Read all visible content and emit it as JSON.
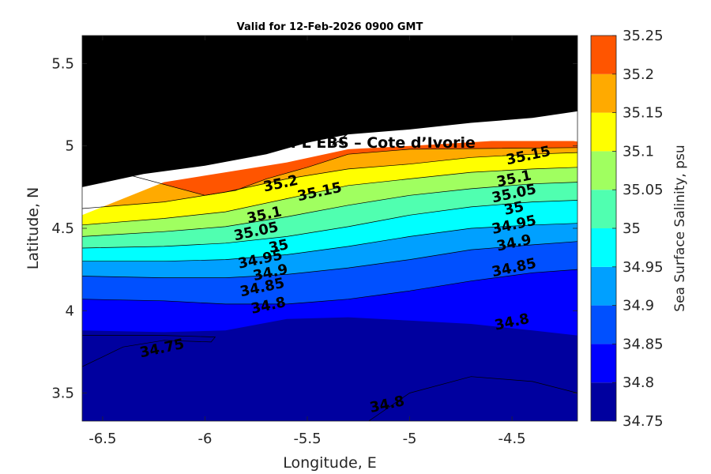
{
  "chart_data": {
    "type": "heatmap",
    "subtype": "filled contour map",
    "title": "Valid for 12-Feb-2026 0900 GMT",
    "xlabel": "Longitude, E",
    "ylabel": "Latitude, N",
    "xlim": [
      -6.6,
      -4.18
    ],
    "ylim": [
      3.33,
      5.67
    ],
    "xticks": [
      -6.5,
      -6,
      -5.5,
      -5,
      -4.5
    ],
    "xtick_labels": [
      "-6.5",
      "-6",
      "-5.5",
      "-5",
      "-4.5"
    ],
    "yticks": [
      3.5,
      4,
      4.5,
      5,
      5.5
    ],
    "ytick_labels": [
      "3.5",
      "4",
      "4.5",
      "5",
      "5.5"
    ],
    "colorbar": {
      "label": "Sea Surface Salinity, psu",
      "levels": [
        34.75,
        34.8,
        34.85,
        34.9,
        34.95,
        35,
        35.05,
        35.1,
        35.15,
        35.2,
        35.25
      ],
      "tick_labels": [
        "34.75",
        "34.8",
        "34.85",
        "34.9",
        "34.95",
        "35",
        "35.05",
        "35.1",
        "35.15",
        "35.2",
        "35.25"
      ],
      "colors": [
        "#00009f",
        "#0000ff",
        "#0050ff",
        "#00a0ff",
        "#00ffff",
        "#50ffb0",
        "#a0ff60",
        "#ffff00",
        "#ffaa00",
        "#ff5500"
      ]
    },
    "land_color": "#000000",
    "coastline": [
      [
        -6.6,
        4.75
      ],
      [
        -6.3,
        4.83
      ],
      [
        -6.0,
        4.88
      ],
      [
        -5.7,
        4.95
      ],
      [
        -5.5,
        5.02
      ],
      [
        -5.3,
        5.07
      ],
      [
        -5.0,
        5.1
      ],
      [
        -4.7,
        5.14
      ],
      [
        -4.4,
        5.17
      ],
      [
        -4.18,
        5.21
      ]
    ],
    "contour_boundaries": [
      {
        "level": 34.8,
        "points": [
          [
            -6.6,
            3.88
          ],
          [
            -6.2,
            3.87
          ],
          [
            -5.9,
            3.88
          ],
          [
            -5.6,
            3.95
          ],
          [
            -5.3,
            3.96
          ],
          [
            -5.0,
            3.94
          ],
          [
            -4.7,
            3.92
          ],
          [
            -4.4,
            3.88
          ],
          [
            -4.18,
            3.85
          ]
        ]
      },
      {
        "level": 34.85,
        "points": [
          [
            -6.6,
            4.07
          ],
          [
            -6.2,
            4.06
          ],
          [
            -5.9,
            4.04
          ],
          [
            -5.6,
            4.04
          ],
          [
            -5.3,
            4.07
          ],
          [
            -5.0,
            4.12
          ],
          [
            -4.7,
            4.18
          ],
          [
            -4.4,
            4.23
          ],
          [
            -4.18,
            4.25
          ]
        ]
      },
      {
        "level": 34.9,
        "points": [
          [
            -6.6,
            4.21
          ],
          [
            -6.2,
            4.2
          ],
          [
            -5.9,
            4.2
          ],
          [
            -5.6,
            4.22
          ],
          [
            -5.3,
            4.26
          ],
          [
            -5.0,
            4.31
          ],
          [
            -4.7,
            4.37
          ],
          [
            -4.4,
            4.4
          ],
          [
            -4.18,
            4.42
          ]
        ]
      },
      {
        "level": 34.95,
        "points": [
          [
            -6.6,
            4.3
          ],
          [
            -6.2,
            4.3
          ],
          [
            -5.9,
            4.31
          ],
          [
            -5.6,
            4.34
          ],
          [
            -5.3,
            4.39
          ],
          [
            -5.0,
            4.45
          ],
          [
            -4.7,
            4.5
          ],
          [
            -4.4,
            4.52
          ],
          [
            -4.18,
            4.53
          ]
        ]
      },
      {
        "level": 35,
        "points": [
          [
            -6.6,
            4.38
          ],
          [
            -6.2,
            4.39
          ],
          [
            -5.9,
            4.41
          ],
          [
            -5.6,
            4.45
          ],
          [
            -5.3,
            4.51
          ],
          [
            -5.0,
            4.58
          ],
          [
            -4.7,
            4.63
          ],
          [
            -4.4,
            4.66
          ],
          [
            -4.18,
            4.67
          ]
        ]
      },
      {
        "level": 35.05,
        "points": [
          [
            -6.6,
            4.45
          ],
          [
            -6.2,
            4.48
          ],
          [
            -5.9,
            4.51
          ],
          [
            -5.6,
            4.57
          ],
          [
            -5.3,
            4.64
          ],
          [
            -5.0,
            4.7
          ],
          [
            -4.7,
            4.74
          ],
          [
            -4.4,
            4.77
          ],
          [
            -4.18,
            4.78
          ]
        ]
      },
      {
        "level": 35.1,
        "points": [
          [
            -6.6,
            4.52
          ],
          [
            -6.2,
            4.56
          ],
          [
            -5.9,
            4.6
          ],
          [
            -5.6,
            4.68
          ],
          [
            -5.3,
            4.76
          ],
          [
            -5.0,
            4.8
          ],
          [
            -4.7,
            4.84
          ],
          [
            -4.4,
            4.86
          ],
          [
            -4.18,
            4.87
          ]
        ]
      },
      {
        "level": 35.15,
        "points": [
          [
            -6.6,
            4.62
          ],
          [
            -6.2,
            4.66
          ],
          [
            -5.9,
            4.72
          ],
          [
            -5.6,
            4.8
          ],
          [
            -5.3,
            4.86
          ],
          [
            -5.0,
            4.89
          ],
          [
            -4.7,
            4.93
          ],
          [
            -4.4,
            4.95
          ],
          [
            -4.18,
            4.96
          ]
        ]
      },
      {
        "level": 35.2,
        "points": [
          [
            -6.6,
            4.9
          ],
          [
            -6.0,
            4.7
          ],
          [
            -5.85,
            4.73
          ],
          [
            -5.7,
            4.8
          ],
          [
            -5.5,
            4.87
          ],
          [
            -5.3,
            4.95
          ],
          [
            -5.0,
            4.98
          ],
          [
            -4.18,
            4.99
          ]
        ]
      }
    ],
    "contour_labels": [
      {
        "text": "35.2",
        "x": -5.63,
        "y": 4.77
      },
      {
        "text": "35.15",
        "x": -5.44,
        "y": 4.72
      },
      {
        "text": "35.15",
        "x": -4.42,
        "y": 4.94
      },
      {
        "text": "35.1",
        "x": -5.71,
        "y": 4.58
      },
      {
        "text": "35.1",
        "x": -4.49,
        "y": 4.8
      },
      {
        "text": "35.05",
        "x": -5.75,
        "y": 4.48
      },
      {
        "text": "35.05",
        "x": -4.49,
        "y": 4.71
      },
      {
        "text": "35",
        "x": -5.64,
        "y": 4.39
      },
      {
        "text": "35",
        "x": -4.49,
        "y": 4.62
      },
      {
        "text": "34.95",
        "x": -5.73,
        "y": 4.31
      },
      {
        "text": "34.95",
        "x": -4.49,
        "y": 4.52
      },
      {
        "text": "34.9",
        "x": -5.68,
        "y": 4.23
      },
      {
        "text": "34.9",
        "x": -4.49,
        "y": 4.41
      },
      {
        "text": "34.85",
        "x": -5.72,
        "y": 4.14
      },
      {
        "text": "34.85",
        "x": -4.49,
        "y": 4.26
      },
      {
        "text": "34.8",
        "x": -5.69,
        "y": 4.03
      },
      {
        "text": "34.8",
        "x": -4.5,
        "y": 3.93
      },
      {
        "text": "34.75",
        "x": -6.21,
        "y": 3.77
      },
      {
        "text": "34.8",
        "x": -5.11,
        "y": 3.43
      }
    ],
    "site": {
      "label": "A (ONHYM) PPL EBS  – Cote d’Ivorie",
      "marker_x": -5.35,
      "marker_y": 5.05,
      "label_x": -5.4,
      "label_y": 4.98
    }
  }
}
